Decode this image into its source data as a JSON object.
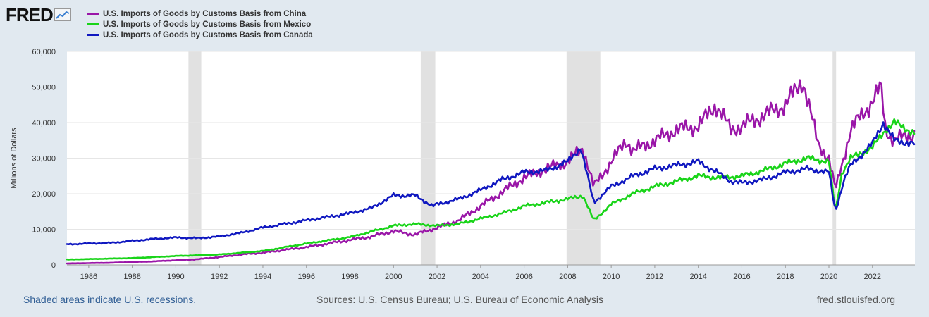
{
  "header": {
    "logo_text": "FRED",
    "logo_icon": "chart-trend-icon"
  },
  "footer": {
    "recession_note": "Shaded areas indicate U.S. recessions.",
    "sources": "Sources: U.S. Census Bureau; U.S. Bureau of Economic Analysis",
    "site": "fred.stlouisfed.org"
  },
  "colors": {
    "china": "#9a16a8",
    "mexico": "#19d419",
    "canada": "#1018c0",
    "recession": "#e1e1e1",
    "grid": "#e6e6e6"
  },
  "chart_data": {
    "type": "line",
    "title": "",
    "xlabel": "",
    "ylabel": "Millions of Dollars",
    "xlim": [
      1985.0,
      2023.95
    ],
    "ylim": [
      0,
      60000
    ],
    "x_ticks": [
      1986,
      1988,
      1990,
      1992,
      1994,
      1996,
      1998,
      2000,
      2002,
      2004,
      2006,
      2008,
      2010,
      2012,
      2014,
      2016,
      2018,
      2020,
      2022
    ],
    "x_tick_labels": [
      "1986",
      "1988",
      "1990",
      "1992",
      "1994",
      "1996",
      "1998",
      "2000",
      "2002",
      "2004",
      "2006",
      "2008",
      "2010",
      "2012",
      "2014",
      "2016",
      "2018",
      "2020",
      "2022"
    ],
    "y_ticks": [
      0,
      10000,
      20000,
      30000,
      40000,
      50000,
      60000
    ],
    "y_tick_labels": [
      "0",
      "10,000",
      "20,000",
      "30,000",
      "40,000",
      "50,000",
      "60,000"
    ],
    "grid": true,
    "legend_position": "top-left",
    "recessions": [
      [
        1990.58,
        1991.17
      ],
      [
        2001.25,
        2001.92
      ],
      [
        2007.95,
        2009.5
      ],
      [
        2020.17,
        2020.33
      ]
    ],
    "series": [
      {
        "name": "U.S. Imports of Goods by Customs Basis from China",
        "key": "china",
        "x": [
          1985,
          1987,
          1989,
          1990,
          1991,
          1992,
          1993,
          1994,
          1995,
          1996,
          1997,
          1998,
          1999,
          2000,
          2001,
          2002,
          2003,
          2004,
          2005,
          2006,
          2007,
          2008,
          2008.7,
          2009.2,
          2010,
          2010.7,
          2011,
          2012,
          2013,
          2014,
          2014.8,
          2015.5,
          2016,
          2017,
          2018,
          2018.8,
          2019.5,
          2020,
          2020.3,
          2021,
          2022,
          2022.4,
          2022.6,
          2023,
          2023.95
        ],
        "values": [
          400,
          600,
          1000,
          1300,
          1600,
          2200,
          2900,
          3400,
          4200,
          5000,
          6000,
          7000,
          8000,
          9500,
          8500,
          10500,
          12500,
          16500,
          20500,
          24500,
          27000,
          29000,
          33000,
          22000,
          29000,
          35000,
          32000,
          35000,
          38000,
          39000,
          45000,
          38000,
          39000,
          42000,
          45000,
          52000,
          34000,
          30000,
          21000,
          38000,
          46000,
          50000,
          38000,
          35000,
          37000
        ]
      },
      {
        "name": "U.S. Imports of Goods by Customs Basis from Mexico",
        "key": "mexico",
        "x": [
          1985,
          1988,
          1990,
          1992,
          1994,
          1996,
          1998,
          2000,
          2001,
          2002,
          2003,
          2004,
          2005,
          2006,
          2007,
          2008,
          2008.7,
          2009.2,
          2010,
          2011,
          2012,
          2013,
          2014,
          2015,
          2016,
          2017,
          2018,
          2019,
          2020,
          2020.3,
          2020.6,
          2021,
          2022,
          2022.6,
          2023,
          2023.95
        ],
        "values": [
          1500,
          1900,
          2500,
          2900,
          3900,
          6000,
          7800,
          11000,
          11500,
          11000,
          11500,
          13000,
          14500,
          16500,
          17500,
          18500,
          19500,
          12500,
          17000,
          20000,
          22000,
          23500,
          25000,
          24500,
          25000,
          26500,
          28500,
          30000,
          29000,
          15000,
          26000,
          30000,
          33000,
          38000,
          40000,
          37000
        ]
      },
      {
        "name": "U.S. Imports of Goods by Customs Basis from Canada",
        "key": "canada",
        "x": [
          1985,
          1987,
          1989,
          1990,
          1991,
          1992,
          1993,
          1994,
          1995,
          1996,
          1997,
          1998,
          1999,
          2000,
          2001,
          2001.8,
          2002,
          2003,
          2004,
          2005,
          2006,
          2007,
          2008,
          2008.6,
          2009.2,
          2010,
          2011,
          2012,
          2013,
          2014,
          2015,
          2015.5,
          2016,
          2017,
          2018,
          2019,
          2020,
          2020.3,
          2020.7,
          2021,
          2022,
          2022.5,
          2023,
          2023.95
        ],
        "values": [
          5800,
          6200,
          7300,
          7700,
          7500,
          8000,
          9000,
          10500,
          11500,
          12500,
          13500,
          14500,
          16000,
          19500,
          19500,
          16500,
          17000,
          18500,
          21000,
          24000,
          26000,
          26500,
          29000,
          33000,
          17500,
          22000,
          25000,
          27000,
          28000,
          29000,
          25500,
          23500,
          23000,
          24000,
          26000,
          27000,
          26000,
          15000,
          24000,
          28000,
          34000,
          40000,
          35000,
          34000
        ]
      }
    ]
  }
}
